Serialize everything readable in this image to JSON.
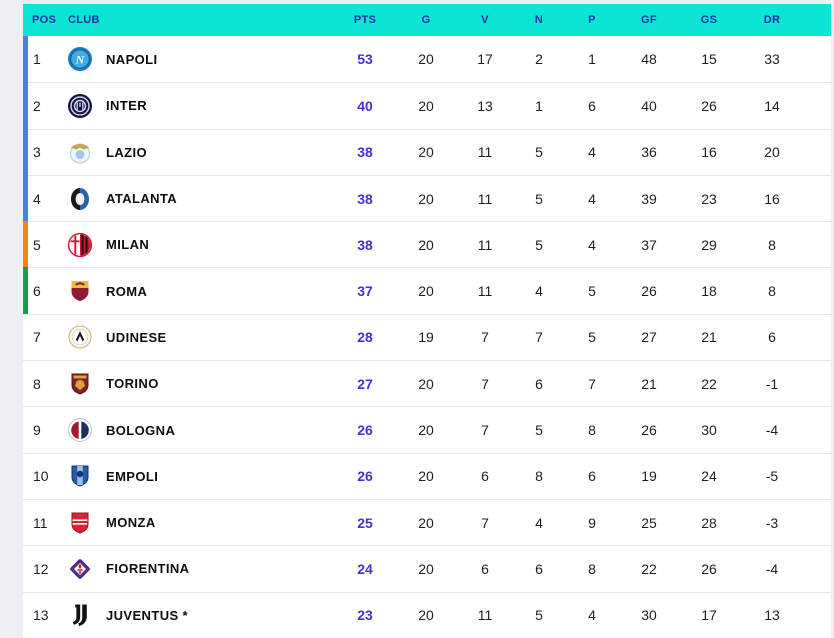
{
  "table": {
    "columns": [
      {
        "key": "pos",
        "label": "POS"
      },
      {
        "key": "club",
        "label": "CLUB"
      },
      {
        "key": "pts",
        "label": "PTS"
      },
      {
        "key": "g",
        "label": "G"
      },
      {
        "key": "v",
        "label": "V"
      },
      {
        "key": "n",
        "label": "N"
      },
      {
        "key": "p",
        "label": "P"
      },
      {
        "key": "gf",
        "label": "GF"
      },
      {
        "key": "gs",
        "label": "GS"
      },
      {
        "key": "dr",
        "label": "DR"
      }
    ],
    "colors": {
      "header_bg": "#0be5d3",
      "header_text": "#0d35a0",
      "points_text": "#4130db",
      "accent_champions": "#4c7fd6",
      "accent_europa": "#f8840e",
      "accent_conference": "#0fa351"
    },
    "rows": [
      {
        "pos": "1",
        "club": "NAPOLI",
        "logo": "napoli-logo",
        "accent": "#4c7fd6",
        "pts": "53",
        "g": "20",
        "v": "17",
        "n": "2",
        "p": "1",
        "gf": "48",
        "gs": "15",
        "dr": "33"
      },
      {
        "pos": "2",
        "club": "INTER",
        "logo": "inter-logo",
        "accent": "#4c7fd6",
        "pts": "40",
        "g": "20",
        "v": "13",
        "n": "1",
        "p": "6",
        "gf": "40",
        "gs": "26",
        "dr": "14"
      },
      {
        "pos": "3",
        "club": "LAZIO",
        "logo": "lazio-logo",
        "accent": "#4c7fd6",
        "pts": "38",
        "g": "20",
        "v": "11",
        "n": "5",
        "p": "4",
        "gf": "36",
        "gs": "16",
        "dr": "20"
      },
      {
        "pos": "4",
        "club": "ATALANTA",
        "logo": "atalanta-logo",
        "accent": "#4c7fd6",
        "pts": "38",
        "g": "20",
        "v": "11",
        "n": "5",
        "p": "4",
        "gf": "39",
        "gs": "23",
        "dr": "16"
      },
      {
        "pos": "5",
        "club": "MILAN",
        "logo": "milan-logo",
        "accent": "#f8840e",
        "pts": "38",
        "g": "20",
        "v": "11",
        "n": "5",
        "p": "4",
        "gf": "37",
        "gs": "29",
        "dr": "8"
      },
      {
        "pos": "6",
        "club": "ROMA",
        "logo": "roma-logo",
        "accent": "#0fa351",
        "pts": "37",
        "g": "20",
        "v": "11",
        "n": "4",
        "p": "5",
        "gf": "26",
        "gs": "18",
        "dr": "8"
      },
      {
        "pos": "7",
        "club": "UDINESE",
        "logo": "udinese-logo",
        "accent": "",
        "pts": "28",
        "g": "19",
        "v": "7",
        "n": "7",
        "p": "5",
        "gf": "27",
        "gs": "21",
        "dr": "6"
      },
      {
        "pos": "8",
        "club": "TORINO",
        "logo": "torino-logo",
        "accent": "",
        "pts": "27",
        "g": "20",
        "v": "7",
        "n": "6",
        "p": "7",
        "gf": "21",
        "gs": "22",
        "dr": "-1"
      },
      {
        "pos": "9",
        "club": "BOLOGNA",
        "logo": "bologna-logo",
        "accent": "",
        "pts": "26",
        "g": "20",
        "v": "7",
        "n": "5",
        "p": "8",
        "gf": "26",
        "gs": "30",
        "dr": "-4"
      },
      {
        "pos": "10",
        "club": "EMPOLI",
        "logo": "empoli-logo",
        "accent": "",
        "pts": "26",
        "g": "20",
        "v": "6",
        "n": "8",
        "p": "6",
        "gf": "19",
        "gs": "24",
        "dr": "-5"
      },
      {
        "pos": "11",
        "club": "MONZA",
        "logo": "monza-logo",
        "accent": "",
        "pts": "25",
        "g": "20",
        "v": "7",
        "n": "4",
        "p": "9",
        "gf": "25",
        "gs": "28",
        "dr": "-3"
      },
      {
        "pos": "12",
        "club": "FIORENTINA",
        "logo": "fiorentina-logo",
        "accent": "",
        "pts": "24",
        "g": "20",
        "v": "6",
        "n": "6",
        "p": "8",
        "gf": "22",
        "gs": "26",
        "dr": "-4"
      },
      {
        "pos": "13",
        "club": "JUVENTUS *",
        "logo": "juventus-logo",
        "accent": "",
        "pts": "23",
        "g": "20",
        "v": "11",
        "n": "5",
        "p": "4",
        "gf": "30",
        "gs": "17",
        "dr": "13"
      }
    ]
  }
}
